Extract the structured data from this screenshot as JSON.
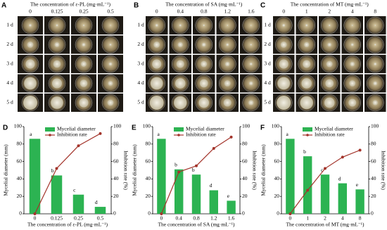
{
  "panels": [
    {
      "label": "A",
      "title": "The concentration of ε-PL (mg·mL⁻¹)",
      "columns": [
        "0",
        "0.125",
        "0.25",
        "0.5"
      ],
      "rows": [
        "1 d",
        "2 d",
        "3 d",
        "4 d",
        "5 d"
      ]
    },
    {
      "label": "B",
      "title": "The concentration of SA (mg·mL⁻¹)",
      "columns": [
        "0",
        "0.4",
        "0.8",
        "1.2",
        "1.6"
      ],
      "rows": [
        "1 d",
        "2 d",
        "3 d",
        "4 d",
        "5 d"
      ]
    },
    {
      "label": "C",
      "title": "The concentration of MT (mg·mL⁻¹)",
      "columns": [
        "0",
        "1",
        "2",
        "4",
        "8"
      ],
      "rows": [
        "1 d",
        "2 d",
        "3 d",
        "4 d",
        "5 d"
      ]
    }
  ],
  "chart_data": [
    {
      "type": "bar-line",
      "label": "D",
      "x_label": "The concentration of ε-PL (mg·mL⁻¹)",
      "y_label": "Mycelial diameter (mm)",
      "y2_label": "Inhibition rate (%)",
      "categories": [
        "0",
        "0.125",
        "0.25",
        "0.5"
      ],
      "letters": [
        "a",
        "b",
        "c",
        "d"
      ],
      "series": [
        {
          "name": "Mycelial diameter",
          "type": "bar",
          "color": "#2cb352",
          "values": [
            86,
            44,
            22,
            8
          ]
        },
        {
          "name": "Inhibition rate",
          "type": "line",
          "axis": "y2",
          "color": "#a3342b",
          "values": [
            0,
            52,
            78,
            92
          ]
        }
      ],
      "ylim": [
        0,
        100
      ],
      "yticks": [
        0,
        20,
        40,
        60,
        80,
        100
      ],
      "y2lim": [
        0,
        100
      ],
      "y2ticks": [
        0,
        20,
        40,
        60,
        80,
        100
      ]
    },
    {
      "type": "bar-line",
      "label": "E",
      "x_label": "The concentration of SA (mg·mL⁻¹)",
      "y_label": "Mycelial diameter (mm)",
      "y2_label": "Inhibition rate (%)",
      "categories": [
        "0",
        "0.4",
        "0.8",
        "1.2",
        "1.6"
      ],
      "letters": [
        "a",
        "b",
        "b",
        "d",
        "e"
      ],
      "series": [
        {
          "name": "Mycelial diameter",
          "type": "bar",
          "color": "#2cb352",
          "values": [
            86,
            51,
            45,
            27,
            15
          ]
        },
        {
          "name": "Inhibition rate",
          "type": "line",
          "axis": "y2",
          "color": "#a3342b",
          "values": [
            0,
            48,
            55,
            75,
            88
          ]
        }
      ],
      "ylim": [
        0,
        100
      ],
      "yticks": [
        0,
        20,
        40,
        60,
        80,
        100
      ],
      "y2lim": [
        0,
        100
      ],
      "y2ticks": [
        0,
        20,
        40,
        60,
        80,
        100
      ]
    },
    {
      "type": "bar-line",
      "label": "F",
      "x_label": "The concentration of MT (mg·mL⁻¹)",
      "y_label": "Mycelial diameter (mm)",
      "y2_label": "Inhibition rate (%)",
      "categories": [
        "0",
        "1",
        "2",
        "4",
        "8"
      ],
      "letters": [
        "a",
        "b",
        "c",
        "d",
        "e"
      ],
      "series": [
        {
          "name": "Mycelial diameter",
          "type": "bar",
          "color": "#2cb352",
          "values": [
            86,
            66,
            45,
            35,
            28
          ]
        },
        {
          "name": "Inhibition rate",
          "type": "line",
          "axis": "y2",
          "color": "#a3342b",
          "values": [
            0,
            27,
            52,
            65,
            73
          ]
        }
      ],
      "ylim": [
        0,
        100
      ],
      "yticks": [
        0,
        20,
        40,
        60,
        80,
        100
      ],
      "y2lim": [
        0,
        100
      ],
      "y2ticks": [
        0,
        20,
        40,
        60,
        80,
        100
      ]
    }
  ]
}
